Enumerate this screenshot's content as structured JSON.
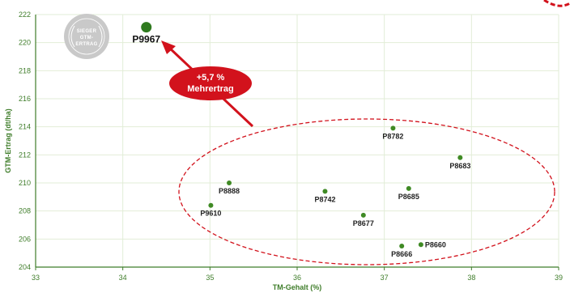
{
  "chart_data": {
    "type": "scatter",
    "xlabel": "TM-Gehalt (%)",
    "ylabel": "GTM-Ertrag (dt/ha)",
    "xlim": [
      33,
      39
    ],
    "ylim": [
      204,
      222
    ],
    "x_ticks": [
      "33",
      "34",
      "35",
      "36",
      "37",
      "38",
      "39"
    ],
    "y_ticks": [
      "204",
      "206",
      "208",
      "210",
      "212",
      "214",
      "216",
      "218",
      "220",
      "222"
    ],
    "grid": true,
    "points": [
      {
        "label": "P9967",
        "x": 34.27,
        "y": 221.1,
        "highlight": true
      },
      {
        "label": "P8782",
        "x": 37.1,
        "y": 213.9
      },
      {
        "label": "P8683",
        "x": 37.87,
        "y": 211.8
      },
      {
        "label": "P8888",
        "x": 35.22,
        "y": 210.0
      },
      {
        "label": "P8742",
        "x": 36.32,
        "y": 209.4
      },
      {
        "label": "P8685",
        "x": 37.28,
        "y": 209.6
      },
      {
        "label": "P9610",
        "x": 35.01,
        "y": 208.4
      },
      {
        "label": "P8677",
        "x": 36.76,
        "y": 207.7
      },
      {
        "label": "P8660",
        "x": 37.42,
        "y": 205.6
      },
      {
        "label": "P8666",
        "x": 37.2,
        "y": 205.5
      }
    ],
    "callout": {
      "line1": "+5,7 %",
      "line2": "Mehrertrag"
    },
    "badge": {
      "line1": "SIEGER",
      "line2": "GTM-",
      "line3": "ERTRAG"
    },
    "colors": {
      "highlight": "#2f7a1f",
      "point": "#3f8a24",
      "accent": "#d2121c",
      "grid": "#e2edd7",
      "axis": "#3f7d2a",
      "badge": "#c9c9c9"
    }
  }
}
